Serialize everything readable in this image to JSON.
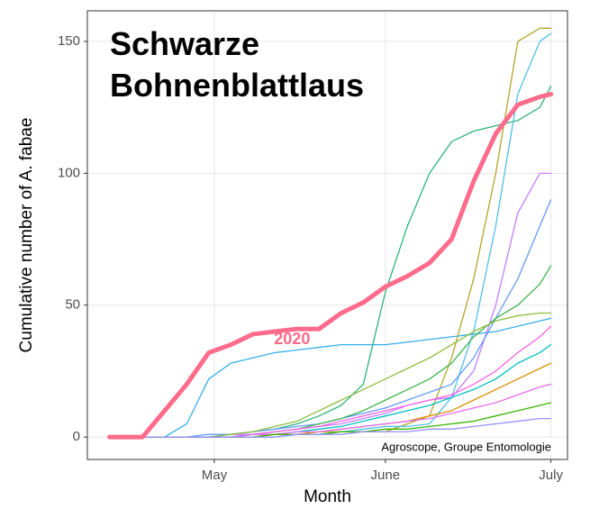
{
  "chart_data": {
    "type": "line",
    "title": "Schwarze Bohnenblattlaus",
    "xlabel": "Month",
    "ylabel": "Cumulative number of A. fabae",
    "caption": "Agroscope, Groupe Entomologie",
    "x": [
      102,
      108,
      112,
      116,
      120,
      124,
      128,
      132,
      136,
      140,
      144,
      148,
      152,
      156,
      160,
      164,
      168,
      172,
      176,
      180,
      182
    ],
    "xlim": [
      98,
      185
    ],
    "xticks": [
      {
        "value": 121,
        "label": "May"
      },
      {
        "value": 152,
        "label": "June"
      },
      {
        "value": 182,
        "label": "July"
      }
    ],
    "ylim": [
      -8.5,
      161.6
    ],
    "yticks": [
      0,
      50,
      100,
      150
    ],
    "grid": true,
    "series": [
      {
        "color": "#35b0e8",
        "values": [
          0,
          0,
          0,
          5,
          22,
          28,
          30,
          32,
          33,
          34,
          35,
          35,
          35,
          36,
          37,
          38,
          39,
          40,
          42,
          44,
          45
        ]
      },
      {
        "color": "#2db37a",
        "values": [
          0,
          0,
          0,
          0,
          0,
          1,
          2,
          3,
          5,
          8,
          12,
          20,
          55,
          80,
          100,
          112,
          116,
          118,
          120,
          125,
          133
        ]
      },
      {
        "color": "#b5a42a",
        "values": [
          0,
          0,
          0,
          0,
          0,
          0,
          0,
          1,
          1,
          2,
          2,
          2,
          2,
          5,
          8,
          30,
          60,
          100,
          150,
          155,
          155
        ]
      },
      {
        "color": "#4fc0e8",
        "values": [
          0,
          0,
          0,
          0,
          0,
          0,
          0,
          0,
          1,
          1,
          2,
          3,
          4,
          4,
          5,
          15,
          40,
          80,
          130,
          150,
          153
        ]
      },
      {
        "color": "#c77cff",
        "values": [
          0,
          0,
          0,
          0,
          0,
          1,
          1,
          2,
          3,
          4,
          5,
          7,
          9,
          12,
          14,
          15,
          25,
          50,
          85,
          100,
          100
        ]
      },
      {
        "color": "#619cff",
        "values": [
          0,
          0,
          0,
          0,
          1,
          1,
          2,
          3,
          4,
          5,
          7,
          9,
          11,
          14,
          17,
          20,
          30,
          45,
          60,
          80,
          90
        ]
      },
      {
        "color": "#3cb44b",
        "values": [
          0,
          0,
          0,
          0,
          0,
          0,
          1,
          2,
          3,
          5,
          7,
          10,
          14,
          18,
          22,
          28,
          38,
          45,
          50,
          58,
          65
        ]
      },
      {
        "color": "#8fbc3f",
        "values": [
          0,
          0,
          0,
          0,
          0,
          1,
          2,
          4,
          6,
          10,
          14,
          18,
          22,
          26,
          30,
          35,
          40,
          44,
          46,
          47,
          47
        ]
      },
      {
        "color": "#f564e3",
        "values": [
          0,
          0,
          0,
          0,
          0,
          0,
          1,
          2,
          3,
          4,
          6,
          8,
          10,
          12,
          14,
          16,
          20,
          25,
          32,
          38,
          42
        ]
      },
      {
        "color": "#00bfc4",
        "values": [
          0,
          0,
          0,
          0,
          0,
          0,
          1,
          1,
          2,
          3,
          4,
          6,
          8,
          10,
          12,
          15,
          18,
          22,
          28,
          32,
          35
        ]
      },
      {
        "color": "#d89000",
        "values": [
          0,
          0,
          0,
          0,
          0,
          0,
          0,
          1,
          1,
          2,
          3,
          4,
          5,
          6,
          8,
          10,
          14,
          18,
          22,
          26,
          28
        ]
      },
      {
        "color": "#e76bf3",
        "values": [
          0,
          0,
          0,
          0,
          0,
          0,
          1,
          1,
          2,
          2,
          3,
          4,
          5,
          6,
          7,
          9,
          11,
          13,
          16,
          19,
          20
        ]
      },
      {
        "color": "#39b600",
        "values": [
          0,
          0,
          0,
          0,
          0,
          0,
          0,
          1,
          1,
          1,
          2,
          2,
          3,
          3,
          4,
          5,
          6,
          8,
          10,
          12,
          13
        ]
      },
      {
        "color": "#9590ff",
        "values": [
          0,
          0,
          0,
          0,
          0,
          0,
          0,
          0,
          1,
          1,
          1,
          2,
          2,
          2,
          3,
          3,
          4,
          5,
          6,
          7,
          7
        ]
      },
      {
        "color": "#ff6b8a",
        "name": "2020",
        "width": 5,
        "values": [
          0,
          0,
          10,
          20,
          32,
          35,
          39,
          40,
          41,
          41,
          47,
          51,
          57,
          61,
          66,
          75,
          97,
          115,
          126,
          129,
          130
        ]
      }
    ]
  }
}
